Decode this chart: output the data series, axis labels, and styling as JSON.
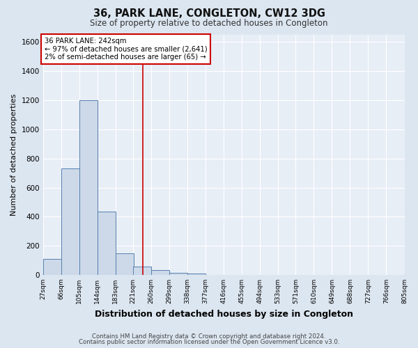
{
  "title": "36, PARK LANE, CONGLETON, CW12 3DG",
  "subtitle": "Size of property relative to detached houses in Congleton",
  "xlabel": "Distribution of detached houses by size in Congleton",
  "ylabel": "Number of detached properties",
  "footnote1": "Contains HM Land Registry data © Crown copyright and database right 2024.",
  "footnote2": "Contains public sector information licensed under the Open Government Licence v3.0.",
  "bin_edges": [
    27,
    66,
    105,
    144,
    183,
    221,
    260,
    299,
    338,
    377,
    416,
    455,
    494,
    533,
    571,
    610,
    649,
    688,
    727,
    766,
    805
  ],
  "bar_heights": [
    110,
    730,
    1200,
    435,
    150,
    55,
    35,
    15,
    10,
    0,
    0,
    0,
    0,
    0,
    0,
    0,
    0,
    0,
    0,
    0
  ],
  "bar_color": "#cdd9e8",
  "bar_edge_color": "#5580b0",
  "property_size": 242,
  "vline_color": "#cc0000",
  "ylim": [
    0,
    1650
  ],
  "xlim": [
    27,
    805
  ],
  "yticks": [
    0,
    200,
    400,
    600,
    800,
    1000,
    1200,
    1400,
    1600
  ],
  "annotation_text": "36 PARK LANE: 242sqm\n← 97% of detached houses are smaller (2,641)\n2% of semi-detached houses are larger (65) →",
  "annotation_box_color": "#ffffff",
  "annotation_box_edge": "#cc0000",
  "background_color": "#dce6f0",
  "plot_bg_color": "#e8eef6"
}
